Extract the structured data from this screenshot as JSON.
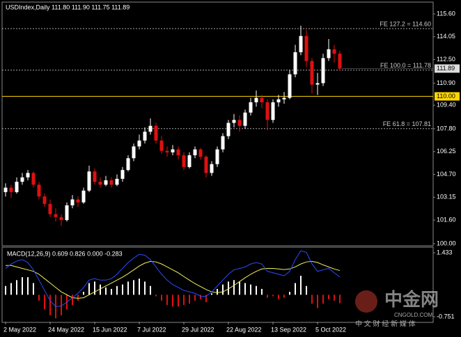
{
  "header": "USDIndex,Daily  111.80 111.90 111.75 111.89",
  "watermark": {
    "brand": "中金网",
    "site": "CNGOLD.COM",
    "tagline": "中 文 财 经 新 媒 体"
  },
  "chart_data": [
    {
      "type": "candlestick",
      "categories": [
        "2 May 2022",
        null,
        null,
        null,
        null,
        null,
        null,
        null,
        "24 May 2022",
        null,
        null,
        null,
        null,
        null,
        null,
        null,
        "15 Jun 2022",
        null,
        null,
        null,
        null,
        null,
        null,
        null,
        "7 Jul 2022",
        null,
        null,
        null,
        null,
        null,
        null,
        null,
        "29 Jul 2022",
        null,
        null,
        null,
        null,
        null,
        null,
        null,
        "22 Aug 2022",
        null,
        null,
        null,
        null,
        null,
        null,
        null,
        "13 Sep 2022",
        null,
        null,
        null,
        null,
        null,
        null,
        null,
        "5 Oct 2022",
        null,
        null,
        null,
        null
      ],
      "ohlc": [
        [
          103.5,
          104.1,
          103.2,
          103.8
        ],
        [
          103.8,
          104.0,
          103.1,
          103.5
        ],
        [
          103.5,
          104.5,
          103.4,
          104.2
        ],
        [
          104.2,
          104.8,
          104.0,
          104.5
        ],
        [
          104.5,
          105.0,
          104.3,
          104.8
        ],
        [
          104.8,
          104.9,
          103.8,
          104.0
        ],
        [
          104.0,
          104.2,
          103.0,
          103.2
        ],
        [
          103.2,
          103.4,
          102.5,
          102.7
        ],
        [
          102.7,
          103.0,
          101.8,
          102.0
        ],
        [
          102.0,
          102.4,
          101.5,
          101.8
        ],
        [
          101.8,
          102.0,
          101.2,
          101.6
        ],
        [
          101.6,
          102.8,
          101.5,
          102.6
        ],
        [
          102.6,
          103.3,
          102.4,
          103.0
        ],
        [
          103.0,
          103.2,
          102.5,
          102.8
        ],
        [
          102.8,
          103.8,
          102.7,
          103.6
        ],
        [
          103.6,
          105.3,
          103.5,
          104.9
        ],
        [
          104.9,
          105.1,
          104.0,
          104.2
        ],
        [
          104.2,
          104.5,
          103.8,
          104.0
        ],
        [
          104.0,
          104.6,
          103.9,
          104.3
        ],
        [
          104.3,
          104.5,
          103.8,
          104.0
        ],
        [
          104.0,
          104.7,
          103.9,
          104.4
        ],
        [
          104.4,
          105.2,
          104.2,
          105.0
        ],
        [
          105.0,
          106.0,
          104.9,
          105.8
        ],
        [
          105.8,
          106.8,
          105.6,
          106.6
        ],
        [
          106.6,
          107.4,
          106.4,
          107.0
        ],
        [
          107.0,
          107.9,
          106.8,
          107.6
        ],
        [
          107.6,
          108.5,
          107.4,
          108.0
        ],
        [
          108.0,
          108.2,
          106.8,
          107.0
        ],
        [
          107.0,
          107.3,
          106.1,
          106.3
        ],
        [
          106.3,
          106.6,
          105.9,
          106.2
        ],
        [
          106.2,
          106.7,
          106.0,
          106.4
        ],
        [
          106.4,
          106.6,
          105.7,
          106.0
        ],
        [
          106.0,
          106.2,
          105.0,
          105.2
        ],
        [
          105.2,
          106.2,
          105.1,
          106.0
        ],
        [
          106.0,
          106.6,
          105.8,
          106.4
        ],
        [
          106.4,
          106.5,
          105.7,
          105.9
        ],
        [
          105.9,
          106.0,
          104.5,
          104.8
        ],
        [
          104.8,
          105.6,
          104.6,
          105.4
        ],
        [
          105.4,
          106.6,
          105.2,
          106.4
        ],
        [
          106.4,
          107.5,
          106.2,
          107.3
        ],
        [
          107.3,
          108.4,
          107.1,
          108.2
        ],
        [
          108.2,
          108.8,
          107.9,
          108.4
        ],
        [
          108.4,
          108.7,
          107.6,
          108.0
        ],
        [
          108.0,
          109.1,
          107.8,
          108.9
        ],
        [
          108.9,
          109.9,
          108.7,
          109.6
        ],
        [
          109.6,
          110.4,
          109.3,
          109.9
        ],
        [
          109.9,
          110.1,
          109.2,
          109.6
        ],
        [
          109.6,
          109.8,
          107.7,
          108.4
        ],
        [
          108.4,
          109.8,
          108.2,
          109.6
        ],
        [
          109.6,
          110.1,
          109.3,
          109.8
        ],
        [
          109.8,
          110.3,
          109.5,
          109.9
        ],
        [
          109.9,
          111.8,
          109.8,
          111.5
        ],
        [
          111.5,
          113.5,
          111.3,
          113.0
        ],
        [
          113.0,
          114.8,
          112.8,
          114.1
        ],
        [
          114.1,
          114.5,
          112.0,
          112.4
        ],
        [
          112.4,
          112.6,
          110.2,
          110.8
        ],
        [
          110.8,
          111.6,
          110.1,
          110.9
        ],
        [
          110.9,
          112.9,
          110.7,
          112.6
        ],
        [
          112.6,
          113.9,
          112.4,
          113.2
        ],
        [
          113.2,
          113.5,
          112.3,
          112.9
        ],
        [
          112.9,
          113.1,
          111.75,
          111.89
        ]
      ],
      "up_color": "#ffffff",
      "down_color": "#e01010",
      "ylim": [
        99.9,
        116.31
      ],
      "yticks": [
        {
          "value": 115.6,
          "label": "115.60"
        },
        114.05,
        {
          "value": 112.5,
          "label": "112.50"
        },
        {
          "value": 110.9,
          "label": "110.90"
        },
        {
          "value": 109.4,
          "label": "109.40"
        },
        {
          "value": 107.8,
          "label": "107.80"
        },
        106.25,
        {
          "value": 104.7,
          "label": "104.70"
        },
        103.15,
        {
          "value": 101.6,
          "label": "101.60"
        },
        {
          "value": 100,
          "label": "100.00"
        }
      ],
      "levels": [
        {
          "label": "FE 127.2 = 114.60",
          "value": 114.6
        },
        {
          "label": "FE 100.0 = 111.78",
          "value": 111.78
        },
        {
          "label": "FE 61.8 = 107.81",
          "value": 107.81
        }
      ],
      "hline": {
        "value": 110,
        "label": "110.00",
        "color": "#ffd700"
      },
      "last": {
        "value": 111.89,
        "label": "111.89"
      }
    },
    {
      "type": "macd",
      "title": "MACD(12,26,9) 0.609 0.826 0.000 -0.283",
      "ylim": [
        -0.917,
        1.623
      ],
      "yticks": [
        1.433,
        -0.751
      ],
      "histogram": {
        "up_color": "#ffffff",
        "down_color": "#e01010",
        "values": [
          0.3,
          0.4,
          0.5,
          0.6,
          0.6,
          0.4,
          -0.2,
          -0.5,
          -0.7,
          -0.8,
          -0.7,
          -0.5,
          -0.35,
          -0.2,
          0.1,
          0.4,
          0.45,
          0.35,
          0.25,
          0.2,
          0.3,
          0.35,
          0.45,
          0.5,
          0.55,
          0.45,
          0.3,
          -0.05,
          -0.2,
          -0.35,
          -0.4,
          -0.4,
          -0.35,
          -0.3,
          -0.2,
          -0.15,
          -0.25,
          0.05,
          0.2,
          0.35,
          0.45,
          0.5,
          0.45,
          0.4,
          0.35,
          0.3,
          0.2,
          -0.1,
          -0.05,
          -0.15,
          -0.1,
          0.1,
          0.4,
          0.65,
          0.3,
          -0.3,
          -0.45,
          -0.3,
          -0.15,
          -0.2,
          -0.283
        ]
      },
      "series": [
        {
          "color": "#f0f060",
          "values": [
            1.0,
            1.0,
            0.95,
            0.9,
            0.85,
            0.8,
            0.7,
            0.55,
            0.4,
            0.25,
            0.1,
            0.0,
            -0.1,
            -0.12,
            -0.1,
            0.0,
            0.1,
            0.2,
            0.3,
            0.4,
            0.5,
            0.6,
            0.72,
            0.85,
            0.98,
            1.08,
            1.14,
            1.12,
            1.05,
            0.95,
            0.85,
            0.75,
            0.62,
            0.5,
            0.38,
            0.28,
            0.18,
            0.1,
            0.07,
            0.1,
            0.2,
            0.32,
            0.45,
            0.58,
            0.7,
            0.8,
            0.88,
            0.9,
            0.9,
            0.88,
            0.86,
            0.88,
            0.95,
            1.05,
            1.12,
            1.14,
            1.1,
            1.02,
            0.95,
            0.88,
            0.826
          ]
        },
        {
          "color": "#2a4cff",
          "values": [
            0.9,
            1.05,
            1.15,
            1.2,
            1.1,
            0.85,
            0.5,
            0.15,
            -0.2,
            -0.4,
            -0.38,
            -0.25,
            -0.1,
            0.05,
            0.25,
            0.5,
            0.55,
            0.5,
            0.5,
            0.55,
            0.7,
            0.9,
            1.1,
            1.25,
            1.38,
            1.35,
            1.2,
            0.95,
            0.7,
            0.5,
            0.35,
            0.25,
            0.15,
            0.1,
            0.05,
            -0.05,
            -0.05,
            0.1,
            0.3,
            0.5,
            0.7,
            0.85,
            0.9,
            0.95,
            1.05,
            1.1,
            1.05,
            0.8,
            0.75,
            0.7,
            0.65,
            0.8,
            1.2,
            1.5,
            1.45,
            1.05,
            0.8,
            0.85,
            0.9,
            0.75,
            0.609
          ]
        }
      ]
    }
  ]
}
